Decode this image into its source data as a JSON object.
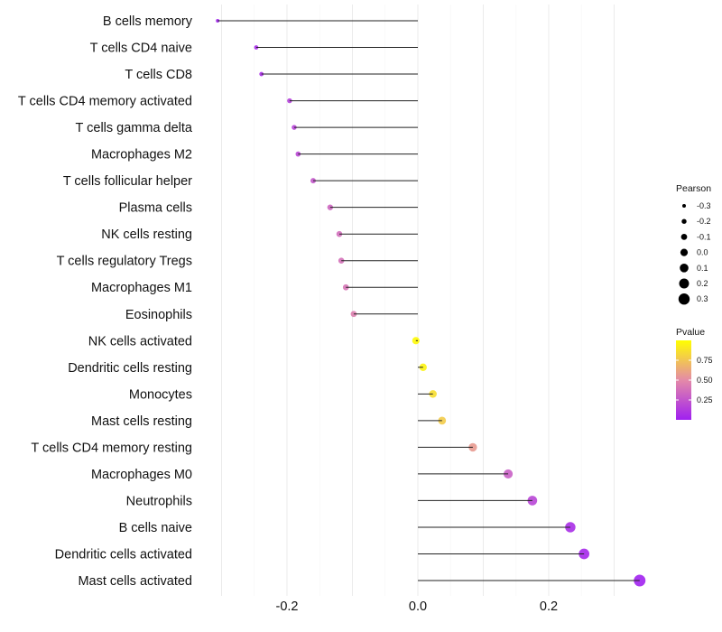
{
  "chart_data": {
    "type": "lollipop",
    "title": "",
    "xlabel": "",
    "ylabel": "",
    "xlim": [
      -0.335,
      0.36
    ],
    "x_ticks": [
      -0.2,
      0.0,
      0.2
    ],
    "x_tick_labels": [
      "-0.2",
      "0.0",
      "0.2"
    ],
    "grid": true,
    "categories": [
      "B cells memory",
      "T cells CD4 naive",
      "T cells CD8",
      "T cells CD4 memory activated",
      "T cells gamma delta",
      "Macrophages M2",
      "T cells follicular helper",
      "Plasma cells",
      "NK cells resting",
      "T cells regulatory  Tregs ",
      "Macrophages M1",
      "Eosinophils",
      "NK cells activated",
      "Dendritic cells resting",
      "Monocytes",
      "Mast cells resting",
      "T cells CD4 memory resting",
      "Macrophages M0",
      "Neutrophils",
      "B cells naive",
      "Dendritic cells activated",
      "Mast cells activated"
    ],
    "pearson": [
      -0.306,
      -0.247,
      -0.239,
      -0.196,
      -0.189,
      -0.183,
      -0.16,
      -0.134,
      -0.12,
      -0.117,
      -0.11,
      -0.098,
      -0.003,
      0.008,
      0.023,
      0.037,
      0.084,
      0.138,
      0.175,
      0.233,
      0.254,
      0.339
    ],
    "pvalue": [
      0.01,
      0.05,
      0.06,
      0.15,
      0.17,
      0.19,
      0.26,
      0.33,
      0.37,
      0.38,
      0.4,
      0.45,
      0.98,
      0.95,
      0.86,
      0.78,
      0.57,
      0.3,
      0.18,
      0.06,
      0.04,
      0.01
    ],
    "legend": {
      "placement": "right",
      "size_title": "Pearson",
      "size_breaks": [
        -0.3,
        -0.2,
        -0.1,
        0.0,
        0.1,
        0.2,
        0.3
      ],
      "size_labels": [
        "-0.3",
        "-0.2",
        "-0.1",
        "0.0",
        "0.1",
        "0.2",
        "0.3"
      ],
      "color_title": "Pvalue",
      "color_breaks": [
        0.25,
        0.5,
        0.75
      ],
      "color_labels": [
        "0.25",
        "0.50",
        "0.75"
      ],
      "color_range": [
        0.0,
        1.0
      ],
      "color_low": "#a020f0",
      "color_mid": "#e48aa8",
      "color_high": "#ffff00"
    }
  }
}
